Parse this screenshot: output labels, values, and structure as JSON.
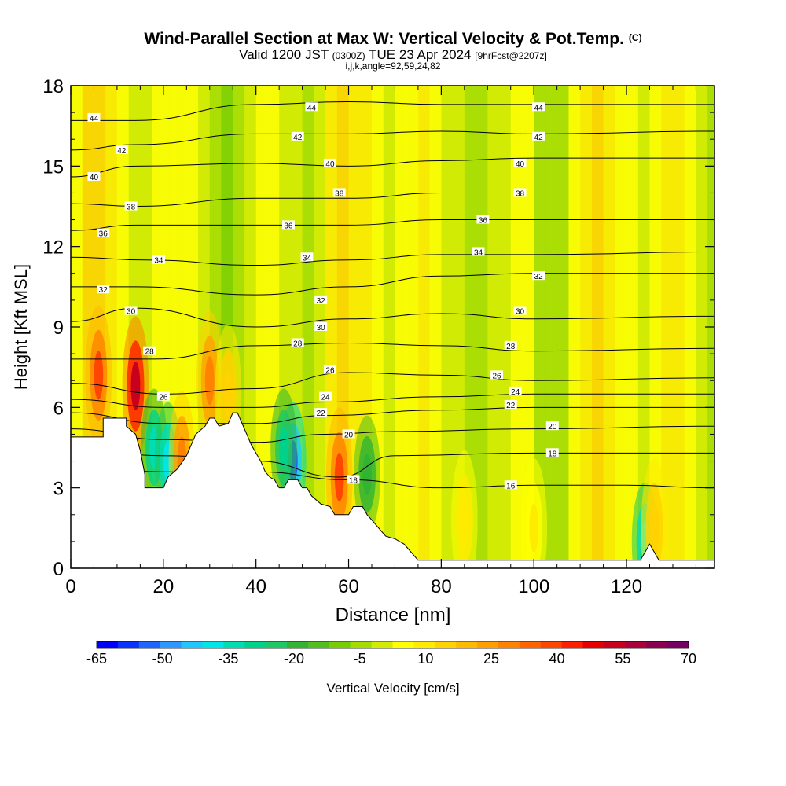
{
  "chart_data": {
    "type": "heatmap",
    "title": "Wind-Parallel Section at Max W: Vertical Velocity & Pot.Temp.",
    "title_mark": "(C)",
    "subtitle_parts": [
      "Valid 1200 JST",
      "(0300Z)",
      "TUE 23 Apr 2024",
      "[9hrFcst@2207z]"
    ],
    "indices": "i,j,k,angle=92,59,24,82",
    "xlabel": "Distance [nm]",
    "ylabel": "Height [Kft MSL]",
    "xlim": [
      0,
      139
    ],
    "ylim": [
      0,
      18
    ],
    "x_ticks": [
      "0",
      "20",
      "40",
      "60",
      "80",
      "100",
      "120"
    ],
    "y_ticks": [
      "0",
      "3",
      "6",
      "9",
      "12",
      "15",
      "18"
    ],
    "colorbar": {
      "label": "Vertical Velocity [cm/s]",
      "min": -65,
      "max": 70,
      "step": 5,
      "tick_labels": [
        "-65",
        "-50",
        "-35",
        "-20",
        "-5",
        "10",
        "25",
        "40",
        "55",
        "70"
      ],
      "colors": [
        "#0000ff",
        "#0a32ff",
        "#1e64ff",
        "#2d96ff",
        "#1ec8ff",
        "#00e6e6",
        "#00dcb4",
        "#00d28c",
        "#1ec864",
        "#32b432",
        "#50be1e",
        "#78cd00",
        "#a5dc00",
        "#d2eb00",
        "#ffff00",
        "#ffeb00",
        "#ffd200",
        "#ffb900",
        "#ffa000",
        "#ff8200",
        "#ff6400",
        "#ff4600",
        "#ff1e00",
        "#e60000",
        "#c8001e",
        "#aa003c",
        "#8c0050",
        "#780064"
      ]
    },
    "theta_contours": [
      {
        "value": 16,
        "label": "16",
        "points": [
          [
            0,
            3.8
          ],
          [
            20,
            3.6
          ],
          [
            40,
            3.6
          ],
          [
            60,
            3.3
          ],
          [
            80,
            3.0
          ],
          [
            100,
            3.1
          ],
          [
            120,
            3.1
          ],
          [
            139,
            3.0
          ]
        ]
      },
      {
        "value": 18,
        "label": "18",
        "points": [
          [
            0,
            4.5
          ],
          [
            20,
            4.2
          ],
          [
            40,
            4.0
          ],
          [
            58,
            3.4
          ],
          [
            70,
            4.2
          ],
          [
            100,
            4.3
          ],
          [
            139,
            4.3
          ]
        ]
      },
      {
        "value": 20,
        "label": "20",
        "points": [
          [
            0,
            5.2
          ],
          [
            20,
            4.8
          ],
          [
            40,
            4.7
          ],
          [
            55,
            5.0
          ],
          [
            70,
            5.1
          ],
          [
            100,
            5.2
          ],
          [
            139,
            5.3
          ]
        ]
      },
      {
        "value": 22,
        "label": "22",
        "points": [
          [
            0,
            5.8
          ],
          [
            20,
            5.4
          ],
          [
            40,
            5.4
          ],
          [
            55,
            5.7
          ],
          [
            80,
            5.9
          ],
          [
            100,
            6.0
          ],
          [
            139,
            6.0
          ]
        ]
      },
      {
        "value": 24,
        "label": "24",
        "points": [
          [
            0,
            6.3
          ],
          [
            20,
            6.0
          ],
          [
            40,
            6.0
          ],
          [
            55,
            6.2
          ],
          [
            80,
            6.4
          ],
          [
            100,
            6.5
          ],
          [
            139,
            6.5
          ]
        ]
      },
      {
        "value": 26,
        "label": "26",
        "points": [
          [
            0,
            6.9
          ],
          [
            20,
            6.5
          ],
          [
            40,
            6.7
          ],
          [
            60,
            7.3
          ],
          [
            80,
            7.2
          ],
          [
            100,
            7.0
          ],
          [
            139,
            7.1
          ]
        ]
      },
      {
        "value": 28,
        "label": "28",
        "points": [
          [
            0,
            7.8
          ],
          [
            18,
            7.8
          ],
          [
            40,
            8.3
          ],
          [
            60,
            8.4
          ],
          [
            80,
            8.3
          ],
          [
            100,
            8.1
          ],
          [
            139,
            8.2
          ]
        ]
      },
      {
        "value": 30,
        "label": "30",
        "points": [
          [
            0,
            9.2
          ],
          [
            14,
            9.7
          ],
          [
            40,
            9.0
          ],
          [
            60,
            9.3
          ],
          [
            80,
            9.5
          ],
          [
            100,
            9.3
          ],
          [
            139,
            9.4
          ]
        ]
      },
      {
        "value": 32,
        "label": "32",
        "points": [
          [
            0,
            10.5
          ],
          [
            14,
            10.5
          ],
          [
            40,
            10.2
          ],
          [
            60,
            10.5
          ],
          [
            80,
            10.9
          ],
          [
            100,
            11.0
          ],
          [
            139,
            11.0
          ]
        ]
      },
      {
        "value": 34,
        "label": "34",
        "points": [
          [
            0,
            11.6
          ],
          [
            16,
            11.5
          ],
          [
            40,
            11.3
          ],
          [
            60,
            11.5
          ],
          [
            80,
            11.7
          ],
          [
            100,
            11.7
          ],
          [
            139,
            11.8
          ]
        ]
      },
      {
        "value": 36,
        "label": "36",
        "points": [
          [
            0,
            12.6
          ],
          [
            14,
            12.8
          ],
          [
            40,
            12.8
          ],
          [
            60,
            12.8
          ],
          [
            80,
            13.0
          ],
          [
            100,
            13.0
          ],
          [
            139,
            13.0
          ]
        ]
      },
      {
        "value": 38,
        "label": "38",
        "points": [
          [
            0,
            13.6
          ],
          [
            14,
            13.5
          ],
          [
            40,
            13.8
          ],
          [
            60,
            13.8
          ],
          [
            80,
            14.0
          ],
          [
            100,
            14.0
          ],
          [
            139,
            14.0
          ]
        ]
      },
      {
        "value": 40,
        "label": "40",
        "points": [
          [
            0,
            14.6
          ],
          [
            14,
            15.0
          ],
          [
            40,
            15.1
          ],
          [
            60,
            15.0
          ],
          [
            80,
            15.2
          ],
          [
            100,
            15.3
          ],
          [
            139,
            15.3
          ]
        ]
      },
      {
        "value": 42,
        "label": "42",
        "points": [
          [
            0,
            15.6
          ],
          [
            14,
            15.8
          ],
          [
            40,
            16.2
          ],
          [
            60,
            16.2
          ],
          [
            80,
            16.3
          ],
          [
            100,
            16.2
          ],
          [
            139,
            16.3
          ]
        ]
      },
      {
        "value": 44,
        "label": "44",
        "points": [
          [
            0,
            16.7
          ],
          [
            14,
            16.7
          ],
          [
            40,
            17.3
          ],
          [
            60,
            17.4
          ],
          [
            80,
            17.3
          ],
          [
            100,
            17.3
          ],
          [
            139,
            17.3
          ]
        ]
      }
    ],
    "terrain": [
      [
        0,
        4.9
      ],
      [
        7,
        4.9
      ],
      [
        7,
        5.6
      ],
      [
        12,
        5.6
      ],
      [
        12,
        5.3
      ],
      [
        14,
        5.0
      ],
      [
        15,
        4.4
      ],
      [
        16,
        3.5
      ],
      [
        16,
        3.0
      ],
      [
        20,
        3.0
      ],
      [
        21,
        3.4
      ],
      [
        23,
        3.7
      ],
      [
        25,
        4.2
      ],
      [
        27,
        5.0
      ],
      [
        29,
        5.3
      ],
      [
        30,
        5.6
      ],
      [
        31,
        5.6
      ],
      [
        32,
        5.3
      ],
      [
        34,
        5.4
      ],
      [
        35,
        5.8
      ],
      [
        36,
        5.8
      ],
      [
        37,
        5.4
      ],
      [
        38,
        5.0
      ],
      [
        39,
        4.6
      ],
      [
        40,
        4.3
      ],
      [
        41,
        4.0
      ],
      [
        42,
        3.6
      ],
      [
        43,
        3.4
      ],
      [
        44,
        3.3
      ],
      [
        45,
        3.0
      ],
      [
        46,
        3.0
      ],
      [
        47,
        3.3
      ],
      [
        49,
        3.3
      ],
      [
        50,
        3.0
      ],
      [
        51,
        3.0
      ],
      [
        52,
        2.7
      ],
      [
        54,
        2.4
      ],
      [
        56,
        2.3
      ],
      [
        57,
        2.0
      ],
      [
        60,
        2.0
      ],
      [
        61,
        2.3
      ],
      [
        63,
        2.3
      ],
      [
        64,
        2.0
      ],
      [
        65,
        1.8
      ],
      [
        66,
        1.6
      ],
      [
        67,
        1.4
      ],
      [
        68,
        1.2
      ],
      [
        70,
        1.1
      ],
      [
        72,
        0.9
      ],
      [
        73,
        0.7
      ],
      [
        74,
        0.5
      ],
      [
        75,
        0.3
      ],
      [
        120,
        0.3
      ],
      [
        123,
        0.3
      ],
      [
        124,
        0.6
      ],
      [
        125,
        0.9
      ],
      [
        126,
        0.6
      ],
      [
        127,
        0.3
      ],
      [
        139,
        0.3
      ]
    ],
    "theta_label_positions": [
      {
        "text": "44",
        "x": 5,
        "y": 16.8
      },
      {
        "text": "44",
        "x": 52,
        "y": 17.2
      },
      {
        "text": "44",
        "x": 101,
        "y": 17.2
      },
      {
        "text": "42",
        "x": 11,
        "y": 15.6
      },
      {
        "text": "42",
        "x": 49,
        "y": 16.1
      },
      {
        "text": "42",
        "x": 101,
        "y": 16.1
      },
      {
        "text": "40",
        "x": 5,
        "y": 14.6
      },
      {
        "text": "40",
        "x": 56,
        "y": 15.1
      },
      {
        "text": "40",
        "x": 97,
        "y": 15.1
      },
      {
        "text": "38",
        "x": 13,
        "y": 13.5
      },
      {
        "text": "38",
        "x": 58,
        "y": 14.0
      },
      {
        "text": "38",
        "x": 97,
        "y": 14.0
      },
      {
        "text": "36",
        "x": 7,
        "y": 12.5
      },
      {
        "text": "36",
        "x": 47,
        "y": 12.8
      },
      {
        "text": "36",
        "x": 89,
        "y": 13.0
      },
      {
        "text": "34",
        "x": 19,
        "y": 11.5
      },
      {
        "text": "34",
        "x": 51,
        "y": 11.6
      },
      {
        "text": "34",
        "x": 88,
        "y": 11.8
      },
      {
        "text": "32",
        "x": 7,
        "y": 10.4
      },
      {
        "text": "32",
        "x": 54,
        "y": 10.0
      },
      {
        "text": "32",
        "x": 101,
        "y": 10.9
      },
      {
        "text": "30",
        "x": 13,
        "y": 9.6
      },
      {
        "text": "30",
        "x": 54,
        "y": 9.0
      },
      {
        "text": "30",
        "x": 97,
        "y": 9.6
      },
      {
        "text": "28",
        "x": 17,
        "y": 8.1
      },
      {
        "text": "28",
        "x": 49,
        "y": 8.4
      },
      {
        "text": "28",
        "x": 95,
        "y": 8.3
      },
      {
        "text": "26",
        "x": 20,
        "y": 6.4
      },
      {
        "text": "26",
        "x": 56,
        "y": 7.4
      },
      {
        "text": "26",
        "x": 92,
        "y": 7.2
      },
      {
        "text": "24",
        "x": 55,
        "y": 6.4
      },
      {
        "text": "24",
        "x": 96,
        "y": 6.6
      },
      {
        "text": "22",
        "x": 54,
        "y": 5.8
      },
      {
        "text": "22",
        "x": 95,
        "y": 6.1
      },
      {
        "text": "20",
        "x": 60,
        "y": 5.0
      },
      {
        "text": "20",
        "x": 104,
        "y": 5.3
      },
      {
        "text": "18",
        "x": 61,
        "y": 3.3
      },
      {
        "text": "18",
        "x": 104,
        "y": 4.3
      },
      {
        "text": "16",
        "x": 95,
        "y": 3.1
      }
    ],
    "w_features": [
      {
        "x": 6,
        "y": 7.2,
        "value": 45
      },
      {
        "x": 14,
        "y": 6.8,
        "value": 60
      },
      {
        "x": 18,
        "y": 4.5,
        "value": -35
      },
      {
        "x": 21,
        "y": 4.0,
        "value": -40
      },
      {
        "x": 24,
        "y": 4.0,
        "value": 35
      },
      {
        "x": 30,
        "y": 7.0,
        "value": 35
      },
      {
        "x": 34,
        "y": 6.5,
        "value": 20
      },
      {
        "x": 48,
        "y": 4.0,
        "value": -55
      },
      {
        "x": 46,
        "y": 4.5,
        "value": -30
      },
      {
        "x": 58,
        "y": 3.4,
        "value": 45
      },
      {
        "x": 64,
        "y": 3.5,
        "value": -20
      },
      {
        "x": 124,
        "y": 1.0,
        "value": -40
      },
      {
        "x": 126,
        "y": 1.5,
        "value": 20
      },
      {
        "x": 85,
        "y": 1.8,
        "value": 15
      },
      {
        "x": 100,
        "y": 1.5,
        "value": 12
      }
    ]
  }
}
